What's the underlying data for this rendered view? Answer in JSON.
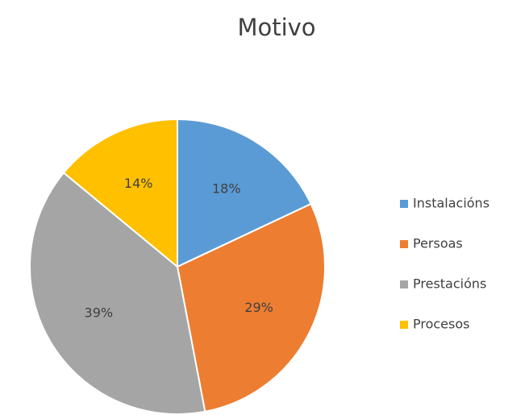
{
  "chart_data": {
    "type": "pie",
    "title": "Motivo",
    "categories": [
      "Instalacións",
      "Persoas",
      "Prestacións",
      "Procesos"
    ],
    "values": [
      18,
      29,
      39,
      14
    ],
    "value_labels": [
      "18%",
      "29%",
      "39%",
      "14%"
    ],
    "colors": [
      "#5b9bd5",
      "#ed7d31",
      "#a5a5a5",
      "#ffc000"
    ],
    "legend": "right"
  }
}
